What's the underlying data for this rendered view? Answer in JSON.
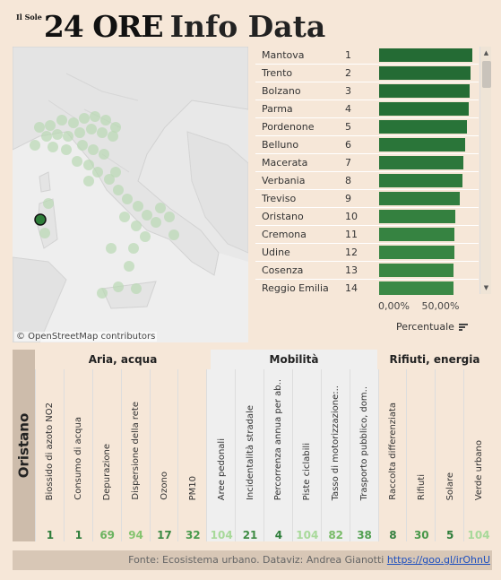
{
  "header": {
    "logo_small": "Il Sole",
    "logo_main": "24 ORE",
    "title": "Info Data"
  },
  "map": {
    "attribution": "© OpenStreetMap contributors"
  },
  "ranking": {
    "rows": [
      {
        "name": "Mantova",
        "pos": "1",
        "pct": 0.98,
        "color": "#246b34"
      },
      {
        "name": "Trento",
        "pos": "2",
        "pct": 0.96,
        "color": "#246b34"
      },
      {
        "name": "Bolzano",
        "pos": "3",
        "pct": 0.95,
        "color": "#256d35"
      },
      {
        "name": "Parma",
        "pos": "4",
        "pct": 0.94,
        "color": "#266f36"
      },
      {
        "name": "Pordenone",
        "pos": "5",
        "pct": 0.92,
        "color": "#287338"
      },
      {
        "name": "Belluno",
        "pos": "6",
        "pct": 0.91,
        "color": "#2a7539"
      },
      {
        "name": "Macerata",
        "pos": "7",
        "pct": 0.89,
        "color": "#2c773b"
      },
      {
        "name": "Verbania",
        "pos": "8",
        "pct": 0.88,
        "color": "#2e7a3d"
      },
      {
        "name": "Treviso",
        "pos": "9",
        "pct": 0.85,
        "color": "#317d3f"
      },
      {
        "name": "Oristano",
        "pos": "10",
        "pct": 0.8,
        "color": "#34803f"
      },
      {
        "name": "Cremona",
        "pos": "11",
        "pct": 0.79,
        "color": "#368341"
      },
      {
        "name": "Udine",
        "pos": "12",
        "pct": 0.79,
        "color": "#388543"
      },
      {
        "name": "Cosenza",
        "pos": "13",
        "pct": 0.78,
        "color": "#3a8744"
      },
      {
        "name": "Reggio Emilia",
        "pos": "14",
        "pct": 0.78,
        "color": "#3b8946"
      }
    ],
    "axis_ticks": [
      "0,00%",
      "50,00%"
    ],
    "axis_title": "Percentuale"
  },
  "table": {
    "city": "Oristano",
    "groups": [
      {
        "label": "Aria, acqua"
      },
      {
        "label": "Mobilità"
      },
      {
        "label": "Rifiuti, energia"
      }
    ],
    "columns": [
      {
        "label": "Biossido di azoto NO2",
        "value": "1",
        "color": "#2e7d3a"
      },
      {
        "label": "Consumo di acqua",
        "value": "1",
        "color": "#2e7d3a"
      },
      {
        "label": "Depurazione",
        "value": "69",
        "color": "#6bb35f"
      },
      {
        "label": "Dispersione della rete",
        "value": "94",
        "color": "#86c470"
      },
      {
        "label": "Ozono",
        "value": "17",
        "color": "#3c8a43"
      },
      {
        "label": "PM10",
        "value": "32",
        "color": "#4a9a4c"
      },
      {
        "label": "Aree pedonali",
        "value": "104",
        "color": "#a8d99a"
      },
      {
        "label": "Incidentalità stradale",
        "value": "21",
        "color": "#3f8c44"
      },
      {
        "label": "Percorrenza annua per ab..",
        "value": "4",
        "color": "#2e7d3a"
      },
      {
        "label": "Piste ciclabili",
        "value": "104",
        "color": "#a8d99a"
      },
      {
        "label": "Tasso di motorizzazione:..",
        "value": "82",
        "color": "#79bb68"
      },
      {
        "label": "Trasporto pubblico, dom..",
        "value": "38",
        "color": "#519f50"
      },
      {
        "label": "Raccolta differenziata",
        "value": "8",
        "color": "#34803f"
      },
      {
        "label": "Rifiuti",
        "value": "30",
        "color": "#489849"
      },
      {
        "label": "Solare",
        "value": "5",
        "color": "#2e7d3a"
      },
      {
        "label": "Verde urbano",
        "value": "104",
        "color": "#a8d99a"
      }
    ]
  },
  "footer": {
    "text": "Fonte: Ecosistema urbano. Dataviz: Andrea Gianotti ",
    "link": "https://goo.gl/irOhnU"
  }
}
